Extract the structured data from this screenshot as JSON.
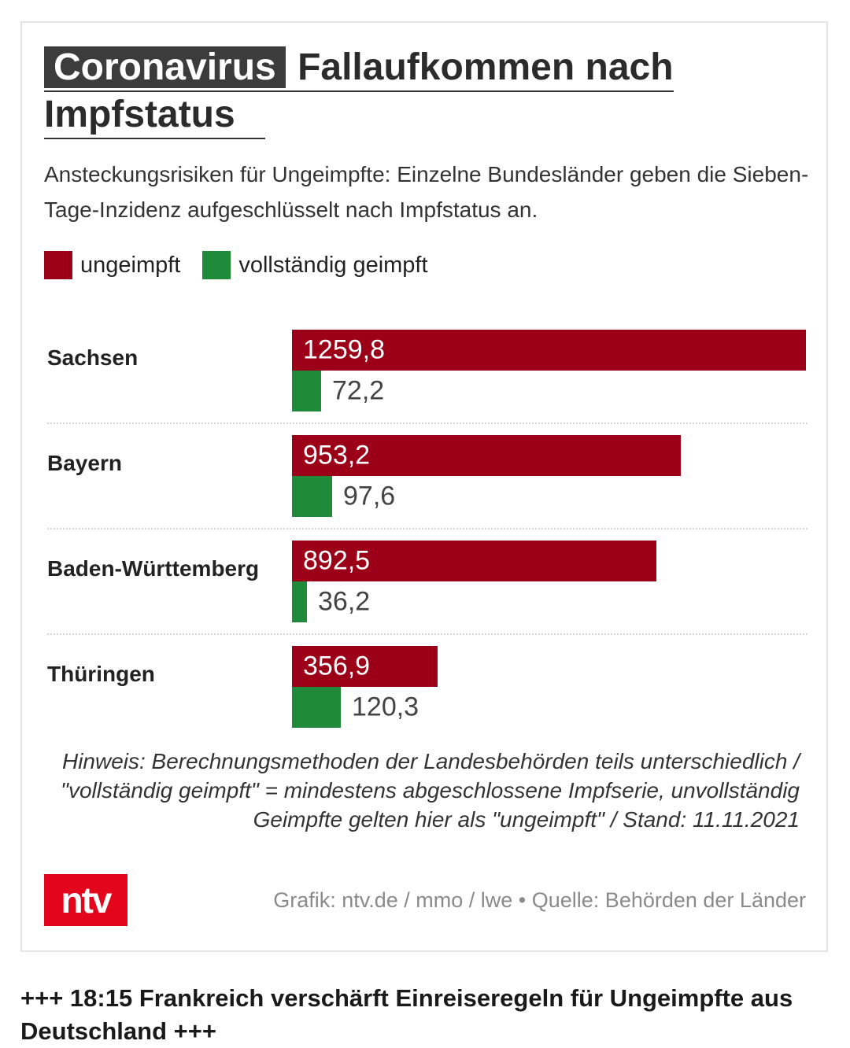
{
  "header": {
    "tag": "Coronavirus",
    "title_rest": "Fallaufkommen nach",
    "title_line2": "Impfstatus"
  },
  "subtitle": "Ansteckungsrisiken für Ungeimpfte: Einzelne Bundesländer geben die Sieben-Tage-Inzidenz aufgeschlüsselt nach Impfstatus an.",
  "legend": [
    {
      "label": "ungeimpft",
      "color": "#9b0018"
    },
    {
      "label": "vollständig geimpft",
      "color": "#1f8a3a"
    }
  ],
  "chart_data": {
    "type": "bar",
    "orientation": "horizontal",
    "categories": [
      "Sachsen",
      "Bayern",
      "Baden-Württemberg",
      "Thüringen"
    ],
    "series": [
      {
        "name": "ungeimpft",
        "color": "#9b0018",
        "values": [
          1259.8,
          953.2,
          892.5,
          356.9
        ],
        "labels": [
          "1259,8",
          "953,2",
          "892,5",
          "356,9"
        ]
      },
      {
        "name": "vollständig geimpft",
        "color": "#1f8a3a",
        "values": [
          72.2,
          97.6,
          36.2,
          120.3
        ],
        "labels": [
          "72,2",
          "97,6",
          "36,2",
          "120,3"
        ]
      }
    ],
    "xlim": [
      0,
      1259.8
    ],
    "title": "Fallaufkommen nach Impfstatus"
  },
  "note": "Hinweis: Berechnungsmethoden der Landesbehörden teils unterschiedlich / \"vollständig geimpft\" = mindestens abgeschlossene Impfserie, unvollständig Geimpfte gelten hier als \"ungeimpft\" / Stand: 11.11.2021",
  "logo_text": "ntv",
  "credit": "Grafik: ntv.de / mmo / lwe • Quelle: Behörden der Länder",
  "headline": "+++ 18:15 Frankreich verschärft Einreiseregeln für Ungeimpfte aus Deutschland +++"
}
